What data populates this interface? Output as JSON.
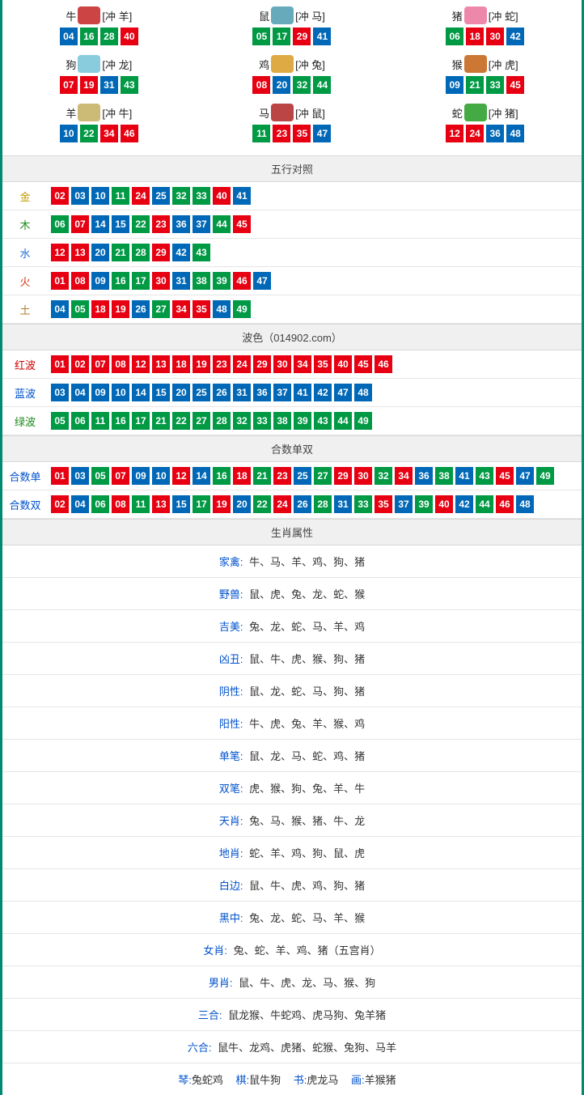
{
  "colors": {
    "red": "#e60012",
    "blue": "#0068b7",
    "green": "#009944"
  },
  "zodiac": [
    {
      "name": "牛",
      "clash": "[冲 羊]",
      "icon_color": "#c44",
      "nums": [
        {
          "v": "04",
          "c": "blue"
        },
        {
          "v": "16",
          "c": "green"
        },
        {
          "v": "28",
          "c": "green"
        },
        {
          "v": "40",
          "c": "red"
        }
      ]
    },
    {
      "name": "鼠",
      "clash": "[冲 马]",
      "icon_color": "#6ab",
      "nums": [
        {
          "v": "05",
          "c": "green"
        },
        {
          "v": "17",
          "c": "green"
        },
        {
          "v": "29",
          "c": "red"
        },
        {
          "v": "41",
          "c": "blue"
        }
      ]
    },
    {
      "name": "猪",
      "clash": "[冲 蛇]",
      "icon_color": "#e8a",
      "nums": [
        {
          "v": "06",
          "c": "green"
        },
        {
          "v": "18",
          "c": "red"
        },
        {
          "v": "30",
          "c": "red"
        },
        {
          "v": "42",
          "c": "blue"
        }
      ]
    },
    {
      "name": "狗",
      "clash": "[冲 龙]",
      "icon_color": "#8cd",
      "nums": [
        {
          "v": "07",
          "c": "red"
        },
        {
          "v": "19",
          "c": "red"
        },
        {
          "v": "31",
          "c": "blue"
        },
        {
          "v": "43",
          "c": "green"
        }
      ]
    },
    {
      "name": "鸡",
      "clash": "[冲 兔]",
      "icon_color": "#da4",
      "nums": [
        {
          "v": "08",
          "c": "red"
        },
        {
          "v": "20",
          "c": "blue"
        },
        {
          "v": "32",
          "c": "green"
        },
        {
          "v": "44",
          "c": "green"
        }
      ]
    },
    {
      "name": "猴",
      "clash": "[冲 虎]",
      "icon_color": "#c73",
      "nums": [
        {
          "v": "09",
          "c": "blue"
        },
        {
          "v": "21",
          "c": "green"
        },
        {
          "v": "33",
          "c": "green"
        },
        {
          "v": "45",
          "c": "red"
        }
      ]
    },
    {
      "name": "羊",
      "clash": "[冲 牛]",
      "icon_color": "#cb7",
      "nums": [
        {
          "v": "10",
          "c": "blue"
        },
        {
          "v": "22",
          "c": "green"
        },
        {
          "v": "34",
          "c": "red"
        },
        {
          "v": "46",
          "c": "red"
        }
      ]
    },
    {
      "name": "马",
      "clash": "[冲 鼠]",
      "icon_color": "#b44",
      "nums": [
        {
          "v": "11",
          "c": "green"
        },
        {
          "v": "23",
          "c": "red"
        },
        {
          "v": "35",
          "c": "red"
        },
        {
          "v": "47",
          "c": "blue"
        }
      ]
    },
    {
      "name": "蛇",
      "clash": "[冲 猪]",
      "icon_color": "#4a4",
      "nums": [
        {
          "v": "12",
          "c": "red"
        },
        {
          "v": "24",
          "c": "red"
        },
        {
          "v": "36",
          "c": "blue"
        },
        {
          "v": "48",
          "c": "blue"
        }
      ]
    }
  ],
  "wuxing": {
    "title": "五行对照",
    "rows": [
      {
        "label": "金",
        "label_color": "#c49a00",
        "nums": [
          {
            "v": "02",
            "c": "red"
          },
          {
            "v": "03",
            "c": "blue"
          },
          {
            "v": "10",
            "c": "blue"
          },
          {
            "v": "11",
            "c": "green"
          },
          {
            "v": "24",
            "c": "red"
          },
          {
            "v": "25",
            "c": "blue"
          },
          {
            "v": "32",
            "c": "green"
          },
          {
            "v": "33",
            "c": "green"
          },
          {
            "v": "40",
            "c": "red"
          },
          {
            "v": "41",
            "c": "blue"
          }
        ]
      },
      {
        "label": "木",
        "label_color": "#1a8a1a",
        "nums": [
          {
            "v": "06",
            "c": "green"
          },
          {
            "v": "07",
            "c": "red"
          },
          {
            "v": "14",
            "c": "blue"
          },
          {
            "v": "15",
            "c": "blue"
          },
          {
            "v": "22",
            "c": "green"
          },
          {
            "v": "23",
            "c": "red"
          },
          {
            "v": "36",
            "c": "blue"
          },
          {
            "v": "37",
            "c": "blue"
          },
          {
            "v": "44",
            "c": "green"
          },
          {
            "v": "45",
            "c": "red"
          }
        ]
      },
      {
        "label": "水",
        "label_color": "#1a6ad4",
        "nums": [
          {
            "v": "12",
            "c": "red"
          },
          {
            "v": "13",
            "c": "red"
          },
          {
            "v": "20",
            "c": "blue"
          },
          {
            "v": "21",
            "c": "green"
          },
          {
            "v": "28",
            "c": "green"
          },
          {
            "v": "29",
            "c": "red"
          },
          {
            "v": "42",
            "c": "blue"
          },
          {
            "v": "43",
            "c": "green"
          }
        ]
      },
      {
        "label": "火",
        "label_color": "#d43a1a",
        "nums": [
          {
            "v": "01",
            "c": "red"
          },
          {
            "v": "08",
            "c": "red"
          },
          {
            "v": "09",
            "c": "blue"
          },
          {
            "v": "16",
            "c": "green"
          },
          {
            "v": "17",
            "c": "green"
          },
          {
            "v": "30",
            "c": "red"
          },
          {
            "v": "31",
            "c": "blue"
          },
          {
            "v": "38",
            "c": "green"
          },
          {
            "v": "39",
            "c": "green"
          },
          {
            "v": "46",
            "c": "red"
          },
          {
            "v": "47",
            "c": "blue"
          }
        ]
      },
      {
        "label": "土",
        "label_color": "#b07a2a",
        "nums": [
          {
            "v": "04",
            "c": "blue"
          },
          {
            "v": "05",
            "c": "green"
          },
          {
            "v": "18",
            "c": "red"
          },
          {
            "v": "19",
            "c": "red"
          },
          {
            "v": "26",
            "c": "blue"
          },
          {
            "v": "27",
            "c": "green"
          },
          {
            "v": "34",
            "c": "red"
          },
          {
            "v": "35",
            "c": "red"
          },
          {
            "v": "48",
            "c": "blue"
          },
          {
            "v": "49",
            "c": "green"
          }
        ]
      }
    ]
  },
  "bose": {
    "title": "波色（014902.com）",
    "rows": [
      {
        "label": "红波",
        "label_color": "#d40000",
        "nums": [
          {
            "v": "01",
            "c": "red"
          },
          {
            "v": "02",
            "c": "red"
          },
          {
            "v": "07",
            "c": "red"
          },
          {
            "v": "08",
            "c": "red"
          },
          {
            "v": "12",
            "c": "red"
          },
          {
            "v": "13",
            "c": "red"
          },
          {
            "v": "18",
            "c": "red"
          },
          {
            "v": "19",
            "c": "red"
          },
          {
            "v": "23",
            "c": "red"
          },
          {
            "v": "24",
            "c": "red"
          },
          {
            "v": "29",
            "c": "red"
          },
          {
            "v": "30",
            "c": "red"
          },
          {
            "v": "34",
            "c": "red"
          },
          {
            "v": "35",
            "c": "red"
          },
          {
            "v": "40",
            "c": "red"
          },
          {
            "v": "45",
            "c": "red"
          },
          {
            "v": "46",
            "c": "red"
          }
        ]
      },
      {
        "label": "蓝波",
        "label_color": "#0052cc",
        "nums": [
          {
            "v": "03",
            "c": "blue"
          },
          {
            "v": "04",
            "c": "blue"
          },
          {
            "v": "09",
            "c": "blue"
          },
          {
            "v": "10",
            "c": "blue"
          },
          {
            "v": "14",
            "c": "blue"
          },
          {
            "v": "15",
            "c": "blue"
          },
          {
            "v": "20",
            "c": "blue"
          },
          {
            "v": "25",
            "c": "blue"
          },
          {
            "v": "26",
            "c": "blue"
          },
          {
            "v": "31",
            "c": "blue"
          },
          {
            "v": "36",
            "c": "blue"
          },
          {
            "v": "37",
            "c": "blue"
          },
          {
            "v": "41",
            "c": "blue"
          },
          {
            "v": "42",
            "c": "blue"
          },
          {
            "v": "47",
            "c": "blue"
          },
          {
            "v": "48",
            "c": "blue"
          }
        ]
      },
      {
        "label": "绿波",
        "label_color": "#1a8a1a",
        "nums": [
          {
            "v": "05",
            "c": "green"
          },
          {
            "v": "06",
            "c": "green"
          },
          {
            "v": "11",
            "c": "green"
          },
          {
            "v": "16",
            "c": "green"
          },
          {
            "v": "17",
            "c": "green"
          },
          {
            "v": "21",
            "c": "green"
          },
          {
            "v": "22",
            "c": "green"
          },
          {
            "v": "27",
            "c": "green"
          },
          {
            "v": "28",
            "c": "green"
          },
          {
            "v": "32",
            "c": "green"
          },
          {
            "v": "33",
            "c": "green"
          },
          {
            "v": "38",
            "c": "green"
          },
          {
            "v": "39",
            "c": "green"
          },
          {
            "v": "43",
            "c": "green"
          },
          {
            "v": "44",
            "c": "green"
          },
          {
            "v": "49",
            "c": "green"
          }
        ]
      }
    ]
  },
  "heshu": {
    "title": "合数单双",
    "rows": [
      {
        "label": "合数单",
        "label_color": "#0052cc",
        "nums": [
          {
            "v": "01",
            "c": "red"
          },
          {
            "v": "03",
            "c": "blue"
          },
          {
            "v": "05",
            "c": "green"
          },
          {
            "v": "07",
            "c": "red"
          },
          {
            "v": "09",
            "c": "blue"
          },
          {
            "v": "10",
            "c": "blue"
          },
          {
            "v": "12",
            "c": "red"
          },
          {
            "v": "14",
            "c": "blue"
          },
          {
            "v": "16",
            "c": "green"
          },
          {
            "v": "18",
            "c": "red"
          },
          {
            "v": "21",
            "c": "green"
          },
          {
            "v": "23",
            "c": "red"
          },
          {
            "v": "25",
            "c": "blue"
          },
          {
            "v": "27",
            "c": "green"
          },
          {
            "v": "29",
            "c": "red"
          },
          {
            "v": "30",
            "c": "red"
          },
          {
            "v": "32",
            "c": "green"
          },
          {
            "v": "34",
            "c": "red"
          },
          {
            "v": "36",
            "c": "blue"
          },
          {
            "v": "38",
            "c": "green"
          },
          {
            "v": "41",
            "c": "blue"
          },
          {
            "v": "43",
            "c": "green"
          },
          {
            "v": "45",
            "c": "red"
          },
          {
            "v": "47",
            "c": "blue"
          },
          {
            "v": "49",
            "c": "green"
          }
        ]
      },
      {
        "label": "合数双",
        "label_color": "#0052cc",
        "nums": [
          {
            "v": "02",
            "c": "red"
          },
          {
            "v": "04",
            "c": "blue"
          },
          {
            "v": "06",
            "c": "green"
          },
          {
            "v": "08",
            "c": "red"
          },
          {
            "v": "11",
            "c": "green"
          },
          {
            "v": "13",
            "c": "red"
          },
          {
            "v": "15",
            "c": "blue"
          },
          {
            "v": "17",
            "c": "green"
          },
          {
            "v": "19",
            "c": "red"
          },
          {
            "v": "20",
            "c": "blue"
          },
          {
            "v": "22",
            "c": "green"
          },
          {
            "v": "24",
            "c": "red"
          },
          {
            "v": "26",
            "c": "blue"
          },
          {
            "v": "28",
            "c": "green"
          },
          {
            "v": "31",
            "c": "blue"
          },
          {
            "v": "33",
            "c": "green"
          },
          {
            "v": "35",
            "c": "red"
          },
          {
            "v": "37",
            "c": "blue"
          },
          {
            "v": "39",
            "c": "green"
          },
          {
            "v": "40",
            "c": "red"
          },
          {
            "v": "42",
            "c": "blue"
          },
          {
            "v": "44",
            "c": "green"
          },
          {
            "v": "46",
            "c": "red"
          },
          {
            "v": "48",
            "c": "blue"
          }
        ]
      }
    ]
  },
  "shuxing": {
    "title": "生肖属性",
    "rows": [
      {
        "label": "家禽",
        "label_color": "#0052cc",
        "text": "牛、马、羊、鸡、狗、猪"
      },
      {
        "label": "野兽",
        "label_color": "#0052cc",
        "text": "鼠、虎、兔、龙、蛇、猴"
      },
      {
        "label": "吉美",
        "label_color": "#0052cc",
        "text": "兔、龙、蛇、马、羊、鸡"
      },
      {
        "label": "凶丑",
        "label_color": "#0052cc",
        "text": "鼠、牛、虎、猴、狗、猪"
      },
      {
        "label": "阴性",
        "label_color": "#0052cc",
        "text": "鼠、龙、蛇、马、狗、猪"
      },
      {
        "label": "阳性",
        "label_color": "#0052cc",
        "text": "牛、虎、兔、羊、猴、鸡"
      },
      {
        "label": "单笔",
        "label_color": "#0052cc",
        "text": "鼠、龙、马、蛇、鸡、猪"
      },
      {
        "label": "双笔",
        "label_color": "#0052cc",
        "text": "虎、猴、狗、兔、羊、牛"
      },
      {
        "label": "天肖",
        "label_color": "#0052cc",
        "text": "兔、马、猴、猪、牛、龙"
      },
      {
        "label": "地肖",
        "label_color": "#0052cc",
        "text": "蛇、羊、鸡、狗、鼠、虎"
      },
      {
        "label": "白边",
        "label_color": "#0052cc",
        "text": "鼠、牛、虎、鸡、狗、猪"
      },
      {
        "label": "黑中",
        "label_color": "#0052cc",
        "text": "兔、龙、蛇、马、羊、猴"
      },
      {
        "label": "女肖",
        "label_color": "#0052cc",
        "text": "兔、蛇、羊、鸡、猪（五宫肖）"
      },
      {
        "label": "男肖",
        "label_color": "#0052cc",
        "text": "鼠、牛、虎、龙、马、猴、狗"
      },
      {
        "label": "三合",
        "label_color": "#0052cc",
        "text": "鼠龙猴、牛蛇鸡、虎马狗、兔羊猪"
      },
      {
        "label": "六合",
        "label_color": "#0052cc",
        "text": "鼠牛、龙鸡、虎猪、蛇猴、兔狗、马羊"
      }
    ],
    "bottom": [
      {
        "label": "琴",
        "label_color": "#0052cc",
        "text": "兔蛇鸡"
      },
      {
        "label": "棋",
        "label_color": "#0052cc",
        "text": "鼠牛狗"
      },
      {
        "label": "书",
        "label_color": "#0052cc",
        "text": "虎龙马"
      },
      {
        "label": "画",
        "label_color": "#0052cc",
        "text": "羊猴猪"
      }
    ]
  }
}
